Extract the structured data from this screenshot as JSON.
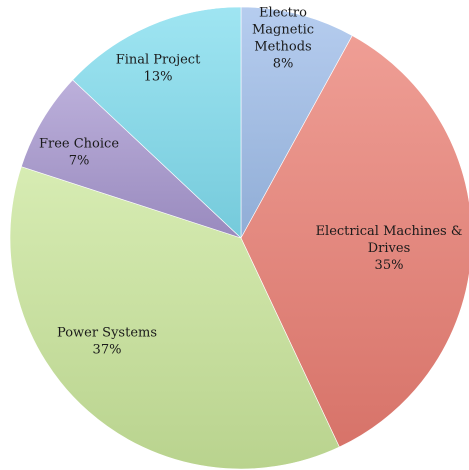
{
  "chart_data": {
    "type": "pie",
    "title": "",
    "slices": [
      {
        "label": "Electro Magnetic Methods",
        "label_lines": [
          "Electro",
          "Magnetic",
          "Methods"
        ],
        "value": 8,
        "value_label": "8%",
        "color": "#9dbce9"
      },
      {
        "label": "Electrical Machines & Drives",
        "label_lines": [
          "Electrical Machines &",
          "Drives"
        ],
        "value": 35,
        "value_label": "35%",
        "color": "#ea7d72"
      },
      {
        "label": "Power Systems",
        "label_lines": [
          "Power Systems"
        ],
        "value": 37,
        "value_label": "37%",
        "color": "#c9e59a"
      },
      {
        "label": "Free Choice",
        "label_lines": [
          "Free Choice"
        ],
        "value": 7,
        "value_label": "7%",
        "color": "#a696cf"
      },
      {
        "label": "Final Project",
        "label_lines": [
          "Final Project"
        ],
        "value": 13,
        "value_label": "13%",
        "color": "#7fdcee"
      }
    ]
  }
}
